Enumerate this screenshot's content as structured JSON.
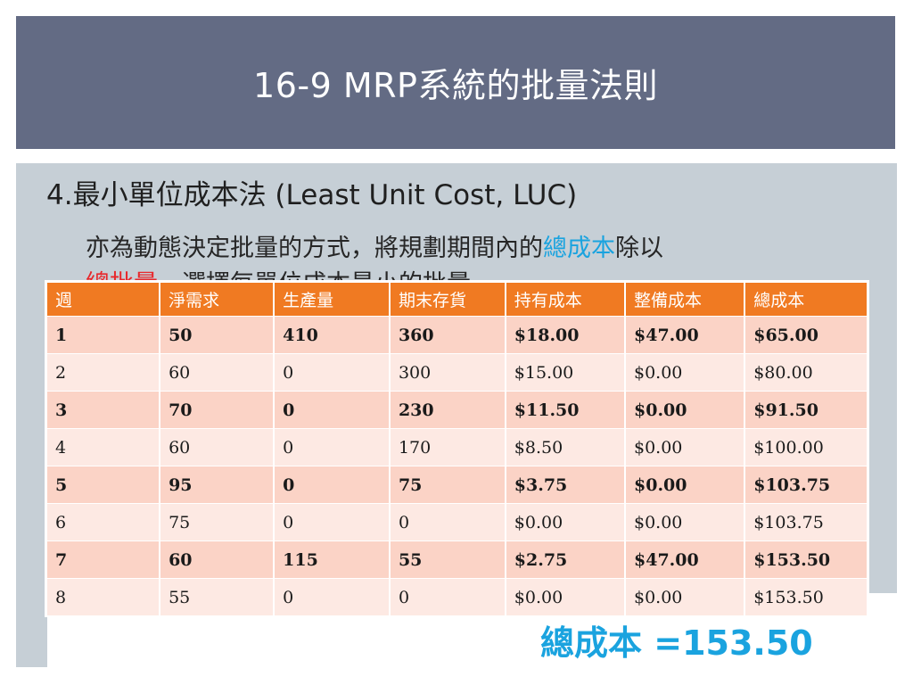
{
  "slide": {
    "title": "16-9 MRP系統的批量法則",
    "heading": "4.最小單位成本法 (Least Unit Cost, LUC)",
    "body_line1_part1": "亦為動態決定批量的方式，將規劃期間內的",
    "body_line1_highlight": "總成本",
    "body_line1_part2": "除以",
    "body_line2_red": "總批量",
    "body_line2_rest": "，選擇每單位成本最小的批量",
    "total_label": "總成本 =153.50"
  },
  "colors": {
    "title_bg": "#636b84",
    "panel_bg": "#c6cfd6",
    "header_bg": "#f07a22",
    "row_odd": "#fbd3c6",
    "row_even": "#fde9e3",
    "highlight_blue": "#1aa3df",
    "highlight_red": "#e8272b"
  },
  "table": {
    "headers": [
      "週",
      "淨需求",
      "生產量",
      "期末存貨",
      "持有成本",
      "整備成本",
      "總成本"
    ],
    "rows": [
      [
        "1",
        "50",
        "410",
        "360",
        "$18.00",
        "$47.00",
        "$65.00"
      ],
      [
        "2",
        "60",
        "0",
        "300",
        "$15.00",
        "$0.00",
        "$80.00"
      ],
      [
        "3",
        "70",
        "0",
        "230",
        "$11.50",
        "$0.00",
        "$91.50"
      ],
      [
        "4",
        "60",
        "0",
        "170",
        "$8.50",
        "$0.00",
        "$100.00"
      ],
      [
        "5",
        "95",
        "0",
        "75",
        "$3.75",
        "$0.00",
        "$103.75"
      ],
      [
        "6",
        "75",
        "0",
        "0",
        "$0.00",
        "$0.00",
        "$103.75"
      ],
      [
        "7",
        "60",
        "115",
        "55",
        "$2.75",
        "$47.00",
        "$153.50"
      ],
      [
        "8",
        "55",
        "0",
        "0",
        "$0.00",
        "$0.00",
        "$153.50"
      ]
    ]
  }
}
